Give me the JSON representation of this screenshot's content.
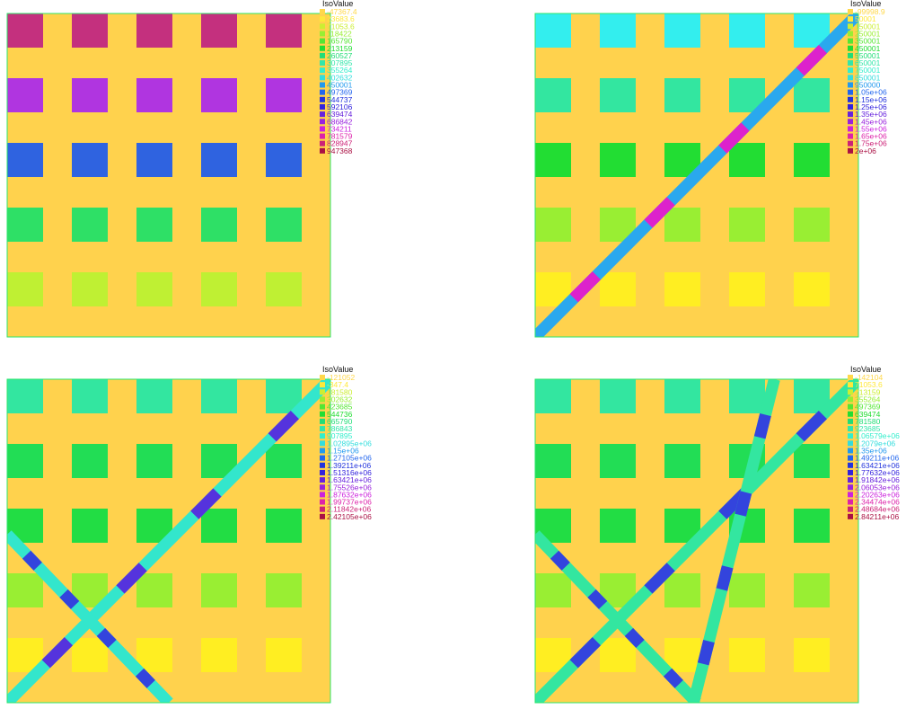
{
  "colors": {
    "background_field": "#ffd24d",
    "frame": "#2ee66b"
  },
  "chart_data": [
    {
      "type": "heatmap",
      "legend_title": "IsoValue",
      "legend_position": "top-right",
      "legend_entries": [
        {
          "label": "-47367.4",
          "color": "#ffd84a"
        },
        {
          "label": "23683.6",
          "color": "#ffe83a"
        },
        {
          "label": "71053.6",
          "color": "#ccee33"
        },
        {
          "label": "118422",
          "color": "#99ee33"
        },
        {
          "label": "165790",
          "color": "#55e633"
        },
        {
          "label": "213159",
          "color": "#22dd33"
        },
        {
          "label": "260527",
          "color": "#22dd77"
        },
        {
          "label": "307895",
          "color": "#33e6aa"
        },
        {
          "label": "355264",
          "color": "#33eecc"
        },
        {
          "label": "402632",
          "color": "#33dddd"
        },
        {
          "label": "450001",
          "color": "#2299ee"
        },
        {
          "label": "497369",
          "color": "#2266ee"
        },
        {
          "label": "544737",
          "color": "#2233dd"
        },
        {
          "label": "592106",
          "color": "#3322dd"
        },
        {
          "label": "639474",
          "color": "#6622dd"
        },
        {
          "label": "686842",
          "color": "#9922dd"
        },
        {
          "label": "734211",
          "color": "#cc22dd"
        },
        {
          "label": "781579",
          "color": "#dd22aa"
        },
        {
          "label": "828947",
          "color": "#cc2277"
        },
        {
          "label": "947368",
          "color": "#aa1144"
        }
      ],
      "grid": {
        "cols": 5,
        "rows": 5
      },
      "block_rows": [
        {
          "color": "#c4307e"
        },
        {
          "color": "#b035e0"
        },
        {
          "color": "#2f63e0"
        },
        {
          "color": "#2ee066"
        },
        {
          "color": "#bff033"
        }
      ],
      "bands": []
    },
    {
      "type": "heatmap",
      "legend_title": "IsoValue",
      "legend_position": "top-right",
      "legend_entries": [
        {
          "label": "-99998.9",
          "color": "#ffd84a"
        },
        {
          "label": "50001",
          "color": "#ffe83a"
        },
        {
          "label": "150001",
          "color": "#ccee33"
        },
        {
          "label": "250001",
          "color": "#99ee33"
        },
        {
          "label": "350001",
          "color": "#55e633"
        },
        {
          "label": "450001",
          "color": "#22dd33"
        },
        {
          "label": "550001",
          "color": "#22dd77"
        },
        {
          "label": "650001",
          "color": "#33e6aa"
        },
        {
          "label": "750001",
          "color": "#33eecc"
        },
        {
          "label": "850001",
          "color": "#33dddd"
        },
        {
          "label": "950000",
          "color": "#2299ee"
        },
        {
          "label": "1.05e+06",
          "color": "#2266ee"
        },
        {
          "label": "1.15e+06",
          "color": "#2233dd"
        },
        {
          "label": "1.25e+06",
          "color": "#3322dd"
        },
        {
          "label": "1.35e+06",
          "color": "#6622dd"
        },
        {
          "label": "1.45e+06",
          "color": "#9922dd"
        },
        {
          "label": "1.55e+06",
          "color": "#cc22dd"
        },
        {
          "label": "1.65e+06",
          "color": "#dd22aa"
        },
        {
          "label": "1.75e+06",
          "color": "#cc2277"
        },
        {
          "label": "2e+06",
          "color": "#aa1144"
        }
      ],
      "grid": {
        "cols": 5,
        "rows": 5
      },
      "block_rows": [
        {
          "color": "#33eeee"
        },
        {
          "color": "#33e6a0"
        },
        {
          "color": "#22dd33"
        },
        {
          "color": "#99ee33"
        },
        {
          "color": "#ffee22"
        }
      ],
      "bands": [
        {
          "from": [
            0,
            0
          ],
          "to": [
            1,
            1
          ],
          "color": "#2aa8ee",
          "highlight": "#dd22cc"
        }
      ]
    },
    {
      "type": "heatmap",
      "legend_title": "IsoValue",
      "legend_position": "top-right",
      "legend_entries": [
        {
          "label": "-121052",
          "color": "#ffd84a"
        },
        {
          "label": "-347.4",
          "color": "#ffe83a"
        },
        {
          "label": "181580",
          "color": "#ccee33"
        },
        {
          "label": "302632",
          "color": "#99ee33"
        },
        {
          "label": "423685",
          "color": "#55e633"
        },
        {
          "label": "544736",
          "color": "#22dd33"
        },
        {
          "label": "665790",
          "color": "#22dd77"
        },
        {
          "label": "786843",
          "color": "#33e6aa"
        },
        {
          "label": "907895",
          "color": "#33eecc"
        },
        {
          "label": "1.02895e+06",
          "color": "#33dddd"
        },
        {
          "label": "1.15e+06",
          "color": "#2299ee"
        },
        {
          "label": "1.27105e+06",
          "color": "#2266ee"
        },
        {
          "label": "1.39211e+06",
          "color": "#2233dd"
        },
        {
          "label": "1.51316e+06",
          "color": "#3322dd"
        },
        {
          "label": "1.63421e+06",
          "color": "#6622dd"
        },
        {
          "label": "1.75526e+06",
          "color": "#9922dd"
        },
        {
          "label": "1.87632e+06",
          "color": "#cc22dd"
        },
        {
          "label": "1.99737e+06",
          "color": "#dd22aa"
        },
        {
          "label": "2.11842e+06",
          "color": "#cc2277"
        },
        {
          "label": "2.42105e+06",
          "color": "#aa1144"
        }
      ],
      "grid": {
        "cols": 5,
        "rows": 5
      },
      "block_rows": [
        {
          "color": "#33e6a0"
        },
        {
          "color": "#22dd55"
        },
        {
          "color": "#22dd44"
        },
        {
          "color": "#99ee33"
        },
        {
          "color": "#ffee22"
        }
      ],
      "bands": [
        {
          "from": [
            0,
            0
          ],
          "to": [
            1,
            1
          ],
          "color": "#33e6cc",
          "highlight": "#5533dd"
        },
        {
          "from": [
            0,
            0.52
          ],
          "to": [
            0.5,
            0
          ],
          "color": "#33e6cc",
          "highlight": "#3344dd"
        }
      ]
    },
    {
      "type": "heatmap",
      "legend_title": "IsoValue",
      "legend_position": "top-right",
      "legend_entries": [
        {
          "label": "-142104",
          "color": "#ffd84a"
        },
        {
          "label": "71053.6",
          "color": "#ffe83a"
        },
        {
          "label": "213159",
          "color": "#ccee33"
        },
        {
          "label": "355264",
          "color": "#99ee33"
        },
        {
          "label": "497369",
          "color": "#55e633"
        },
        {
          "label": "639474",
          "color": "#22dd33"
        },
        {
          "label": "781580",
          "color": "#22dd77"
        },
        {
          "label": "923685",
          "color": "#33e6aa"
        },
        {
          "label": "1.06579e+06",
          "color": "#33eecc"
        },
        {
          "label": "1.2079e+06",
          "color": "#33dddd"
        },
        {
          "label": "1.35e+06",
          "color": "#2299ee"
        },
        {
          "label": "1.49211e+06",
          "color": "#2266ee"
        },
        {
          "label": "1.63421e+06",
          "color": "#2233dd"
        },
        {
          "label": "1.77632e+06",
          "color": "#3322dd"
        },
        {
          "label": "1.91842e+06",
          "color": "#6622dd"
        },
        {
          "label": "2.06053e+06",
          "color": "#9922dd"
        },
        {
          "label": "2.20263e+06",
          "color": "#cc22dd"
        },
        {
          "label": "2.34474e+06",
          "color": "#dd22aa"
        },
        {
          "label": "2.48684e+06",
          "color": "#cc2277"
        },
        {
          "label": "2.84211e+06",
          "color": "#aa1144"
        }
      ],
      "grid": {
        "cols": 5,
        "rows": 5
      },
      "block_rows": [
        {
          "color": "#33e6a0"
        },
        {
          "color": "#22dd55"
        },
        {
          "color": "#22dd44"
        },
        {
          "color": "#99ee33"
        },
        {
          "color": "#ffee22"
        }
      ],
      "bands": [
        {
          "from": [
            0,
            0
          ],
          "to": [
            1,
            1
          ],
          "color": "#33e6a0",
          "highlight": "#3344dd"
        },
        {
          "from": [
            0,
            0.52
          ],
          "to": [
            0.5,
            0
          ],
          "color": "#33e6a0",
          "highlight": "#3344dd"
        },
        {
          "from": [
            0.49,
            0
          ],
          "to": [
            0.74,
            1
          ],
          "color": "#33e6a0",
          "highlight": "#3344dd"
        }
      ]
    }
  ]
}
